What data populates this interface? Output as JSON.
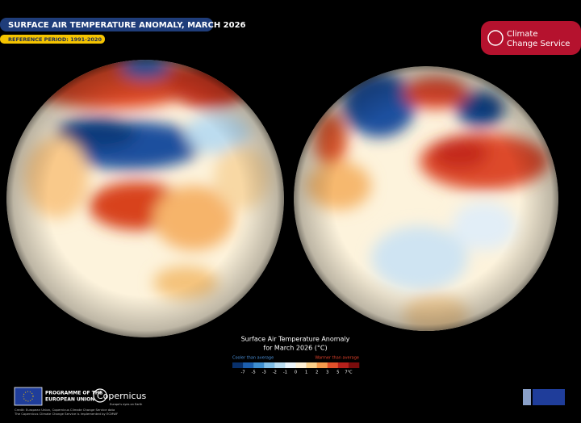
{
  "header": {
    "title": "SURFACE AIR TEMPERATURE ANOMALY, MARCH 2026",
    "subtitle": "REFERENCE PERIOD: 1991-2020"
  },
  "logo": {
    "line1": "Climate",
    "line2": "Change Service"
  },
  "legend": {
    "title_line1": "Surface Air Temperature Anomaly",
    "title_line2": "for March 2026 (°C)",
    "cooler": "Cooler than average",
    "warmer": "Warmer than average",
    "ticks": [
      "-7",
      "-5",
      "-3",
      "-2",
      "-1",
      "0",
      "1",
      "2",
      "3",
      "5",
      "7°C"
    ]
  },
  "footer": {
    "eu_line1": "PROGRAMME OF THE",
    "eu_line2": "EUROPEAN UNION",
    "copernicus": "Copernicus",
    "copernicus_tagline": "Europe's eyes on Earth",
    "credit_line1": "Credit: European Union, Copernicus Climate Change Service data",
    "credit_line2": "The Copernicus Climate Change Service is implemented by ECMWF"
  }
}
